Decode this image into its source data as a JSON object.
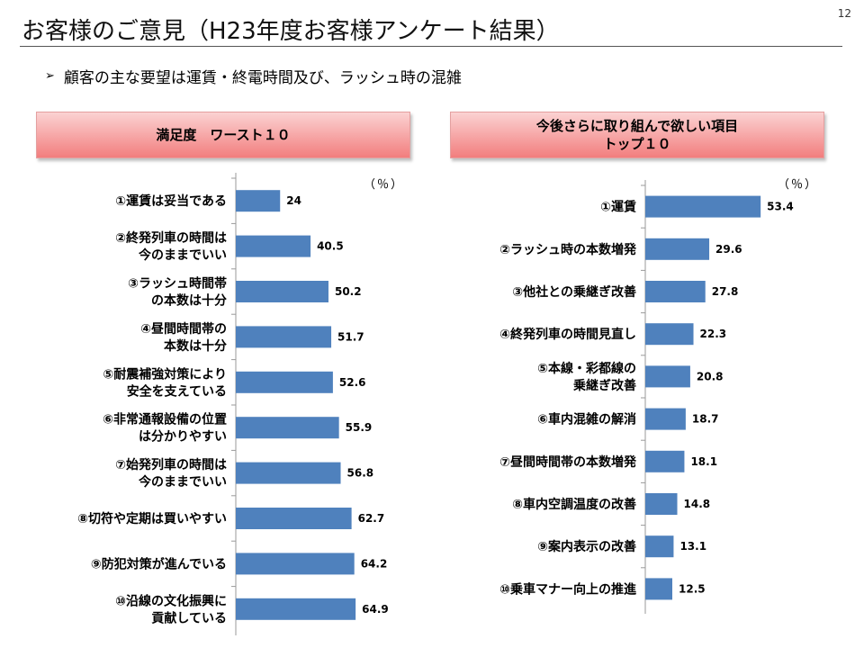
{
  "page_num": "12",
  "title": "お客様のご意見（H23年度お客様アンケート結果）",
  "bullet": "顧客の主な要望は運賃・終電時間及び、ラッシュ時の混雑",
  "left": {
    "header": "満足度　ワースト１０",
    "unit": "（％）"
  },
  "right": {
    "header": "今後さらに取り組んで欲しい項目\nトップ１０",
    "unit": "（％）"
  },
  "chart_data": [
    {
      "type": "bar",
      "orientation": "horizontal",
      "title": "満足度　ワースト１０",
      "unit": "（％）",
      "categories": [
        "①運賃は妥当である",
        "②終発列車の時間は\n今のままでいい",
        "③ラッシュ時間帯\nの本数は十分",
        "④昼間時間帯の\n本数は十分",
        "⑤耐震補強対策により\n安全を支えている",
        "⑥非常通報設備の位置\nは分かりやすい",
        "⑦始発列車の時間は\n今のままでいい",
        "⑧切符や定期は買いやすい",
        "⑨防犯対策が進んでいる",
        "⑩沿線の文化振興に\n貢献している"
      ],
      "values": [
        24,
        40.5,
        50.2,
        51.7,
        52.6,
        55.9,
        56.8,
        62.7,
        64.2,
        64.9
      ],
      "value_labels": [
        "24",
        "40.5",
        "50.2",
        "51.7",
        "52.6",
        "55.9",
        "56.8",
        "62.7",
        "64.2",
        "64.9"
      ],
      "xlim": [
        0,
        195
      ],
      "bar_color": "#4f81bd"
    },
    {
      "type": "bar",
      "orientation": "horizontal",
      "title": "今後さらに取り組んで欲しい項目\nトップ１０",
      "unit": "（％）",
      "categories": [
        "①運賃",
        "②ラッシュ時の本数増発",
        "③他社との乗継ぎ改善",
        "④終発列車の時間見直し",
        "⑤本線・彩都線の\n乗継ぎ改善",
        "⑥車内混雑の解消",
        "⑦昼間時間帯の本数増発",
        "⑧車内空調温度の改善",
        "⑨案内表示の改善",
        "⑩乗車マナー向上の推進"
      ],
      "values": [
        53.4,
        29.6,
        27.8,
        22.3,
        20.8,
        18.7,
        18.1,
        14.8,
        13.1,
        12.5
      ],
      "value_labels": [
        "53.4",
        "29.6",
        "27.8",
        "22.3",
        "20.8",
        "18.7",
        "18.1",
        "14.8",
        "13.1",
        "12.5"
      ],
      "xlim": [
        0,
        90
      ],
      "bar_color": "#4f81bd"
    }
  ]
}
